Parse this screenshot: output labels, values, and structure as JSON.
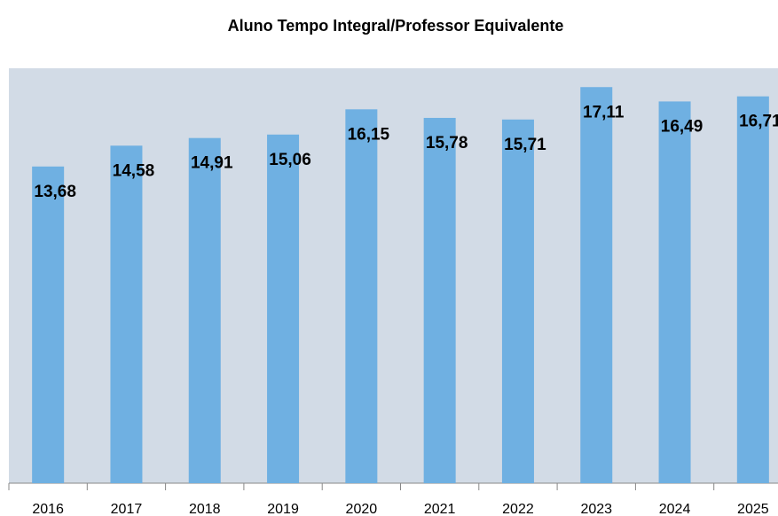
{
  "chart_data": {
    "type": "bar",
    "title": "Aluno Tempo Integral/Professor Equivalente",
    "categories": [
      "2016",
      "2017",
      "2018",
      "2019",
      "2020",
      "2021",
      "2022",
      "2023",
      "2024",
      "2025"
    ],
    "values": [
      13.68,
      14.58,
      14.91,
      15.06,
      16.15,
      15.78,
      15.71,
      17.11,
      16.49,
      16.71
    ],
    "value_labels": [
      "13,68",
      "14,58",
      "14,91",
      "15,06",
      "16,15",
      "15,78",
      "15,71",
      "17,11",
      "16,49",
      "16,71"
    ],
    "color": "#6fb0e2",
    "background": "#d2dbe6",
    "ylim": [
      0,
      18
    ],
    "grid": false
  }
}
